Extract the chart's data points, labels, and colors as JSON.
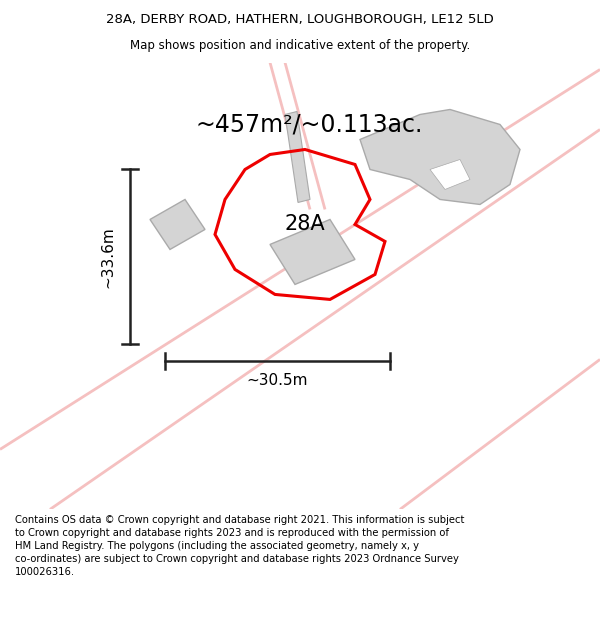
{
  "title_line1": "28A, DERBY ROAD, HATHERN, LOUGHBOROUGH, LE12 5LD",
  "title_line2": "Map shows position and indicative extent of the property.",
  "area_text": "~457m²/~0.113ac.",
  "label_28A": "28A",
  "dim_vertical": "~33.6m",
  "dim_horizontal": "~30.5m",
  "footer": "Contains OS data © Crown copyright and database right 2021. This information is subject to Crown copyright and database rights 2023 and is reproduced with the permission of HM Land Registry. The polygons (including the associated geometry, namely x, y co-ordinates) are subject to Crown copyright and database rights 2023 Ordnance Survey 100026316.",
  "bg_color": "#ffffff",
  "road_color": "#f5c0c0",
  "building_color": "#d4d4d4",
  "building_edge": "#aaaaaa",
  "plot_color": "#ee0000",
  "dim_line_color": "#222222",
  "title_fontsize": 9.5,
  "subtitle_fontsize": 8.5,
  "area_fontsize": 17,
  "label_fontsize": 15,
  "dim_fontsize": 11,
  "footer_fontsize": 7.2
}
